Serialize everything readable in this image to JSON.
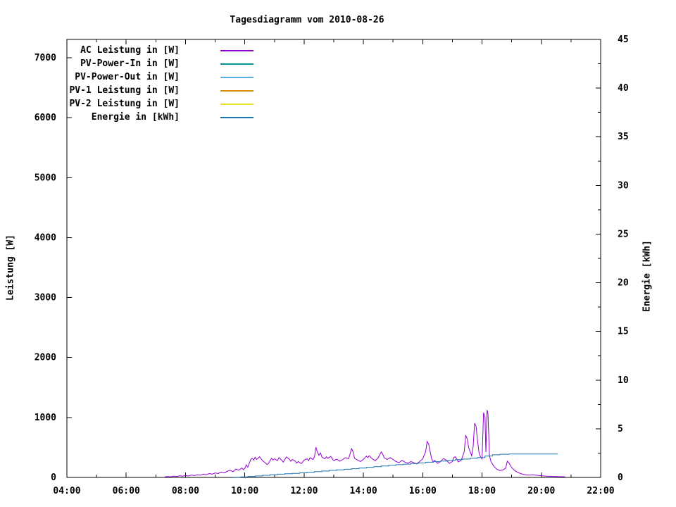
{
  "title": "Tagesdiagramm vom 2010-08-26",
  "axes": {
    "x": {
      "min": 4,
      "max": 22,
      "major_ticks": [
        4,
        6,
        8,
        10,
        12,
        14,
        16,
        18,
        20,
        22
      ],
      "major_labels": [
        "04:00",
        "06:00",
        "08:00",
        "10:00",
        "12:00",
        "14:00",
        "16:00",
        "18:00",
        "20:00",
        "22:00"
      ],
      "minor_step": 1
    },
    "y_left": {
      "label": "Leistung [W]",
      "min": 0,
      "max": 7305,
      "major_ticks": [
        0,
        1000,
        2000,
        3000,
        4000,
        5000,
        6000,
        7000
      ],
      "major_labels": [
        "0",
        "1000",
        "2000",
        "3000",
        "4000",
        "5000",
        "6000",
        "7000"
      ]
    },
    "y_right": {
      "label": "Energie [kWh]",
      "min": 0,
      "max": 45,
      "major_ticks": [
        0,
        5,
        10,
        15,
        20,
        25,
        30,
        35,
        40,
        45
      ],
      "major_labels": [
        "0",
        "5",
        "10",
        "15",
        "20",
        "25",
        "30",
        "35",
        "40",
        "45"
      ],
      "minor_step": 2.5
    }
  },
  "legend": {
    "items": [
      {
        "label": "AC Leistung in [W]",
        "color": "#9400d3"
      },
      {
        "label": "PV-Power-In in [W]",
        "color": "#009494"
      },
      {
        "label": "PV-Power-Out in [W]",
        "color": "#58b0e8"
      },
      {
        "label": "PV-1 Leistung in [W]",
        "color": "#d89000"
      },
      {
        "label": "PV-2 Leistung in [W]",
        "color": "#e8e22c"
      },
      {
        "label": "Energie in [kWh]",
        "color": "#1874b0"
      }
    ]
  },
  "chart_data": {
    "type": "line",
    "title": "Tagesdiagramm vom 2010-08-26",
    "xlabel": "",
    "x_unit": "hour of day",
    "xlim": [
      4,
      22
    ],
    "ylabel_left": "Leistung [W]",
    "ylim_left": [
      0,
      7305
    ],
    "ylabel_right": "Energie [kWh]",
    "ylim_right": [
      0,
      45
    ],
    "grid": false,
    "legend_position": "top-left-inside",
    "series": [
      {
        "name": "AC Leistung in [W]",
        "color": "#9400d3",
        "axis": "left",
        "style": "line",
        "points": [
          [
            7.3,
            8
          ],
          [
            7.4,
            15
          ],
          [
            7.5,
            10
          ],
          [
            7.6,
            22
          ],
          [
            7.7,
            15
          ],
          [
            7.8,
            28
          ],
          [
            7.9,
            20
          ],
          [
            8.0,
            30
          ],
          [
            8.1,
            25
          ],
          [
            8.2,
            40
          ],
          [
            8.3,
            30
          ],
          [
            8.4,
            45
          ],
          [
            8.5,
            38
          ],
          [
            8.6,
            55
          ],
          [
            8.7,
            45
          ],
          [
            8.8,
            65
          ],
          [
            8.9,
            55
          ],
          [
            9.0,
            75
          ],
          [
            9.1,
            65
          ],
          [
            9.2,
            90
          ],
          [
            9.3,
            75
          ],
          [
            9.4,
            100
          ],
          [
            9.5,
            120
          ],
          [
            9.6,
            95
          ],
          [
            9.7,
            140
          ],
          [
            9.8,
            120
          ],
          [
            9.9,
            160
          ],
          [
            9.95,
            130
          ],
          [
            10.0,
            150
          ],
          [
            10.05,
            210
          ],
          [
            10.1,
            170
          ],
          [
            10.2,
            300
          ],
          [
            10.25,
            320
          ],
          [
            10.3,
            290
          ],
          [
            10.35,
            335
          ],
          [
            10.4,
            300
          ],
          [
            10.5,
            345
          ],
          [
            10.55,
            310
          ],
          [
            10.6,
            280
          ],
          [
            10.7,
            240
          ],
          [
            10.75,
            215
          ],
          [
            10.8,
            235
          ],
          [
            10.85,
            280
          ],
          [
            10.9,
            320
          ],
          [
            10.95,
            290
          ],
          [
            11.0,
            310
          ],
          [
            11.1,
            280
          ],
          [
            11.15,
            330
          ],
          [
            11.2,
            310
          ],
          [
            11.3,
            255
          ],
          [
            11.35,
            300
          ],
          [
            11.4,
            340
          ],
          [
            11.5,
            305
          ],
          [
            11.55,
            270
          ],
          [
            11.6,
            300
          ],
          [
            11.7,
            270
          ],
          [
            11.75,
            240
          ],
          [
            11.8,
            265
          ],
          [
            11.9,
            230
          ],
          [
            11.95,
            255
          ],
          [
            12.0,
            290
          ],
          [
            12.1,
            310
          ],
          [
            12.15,
            280
          ],
          [
            12.2,
            330
          ],
          [
            12.3,
            300
          ],
          [
            12.35,
            340
          ],
          [
            12.4,
            505
          ],
          [
            12.45,
            420
          ],
          [
            12.5,
            370
          ],
          [
            12.55,
            410
          ],
          [
            12.6,
            340
          ],
          [
            12.7,
            310
          ],
          [
            12.75,
            345
          ],
          [
            12.8,
            320
          ],
          [
            12.9,
            350
          ],
          [
            12.95,
            310
          ],
          [
            13.0,
            280
          ],
          [
            13.1,
            305
          ],
          [
            13.2,
            270
          ],
          [
            13.3,
            300
          ],
          [
            13.4,
            330
          ],
          [
            13.5,
            310
          ],
          [
            13.6,
            480
          ],
          [
            13.65,
            430
          ],
          [
            13.7,
            320
          ],
          [
            13.8,
            290
          ],
          [
            13.9,
            265
          ],
          [
            14.0,
            300
          ],
          [
            14.1,
            355
          ],
          [
            14.15,
            330
          ],
          [
            14.2,
            360
          ],
          [
            14.3,
            310
          ],
          [
            14.4,
            280
          ],
          [
            14.5,
            330
          ],
          [
            14.6,
            425
          ],
          [
            14.65,
            390
          ],
          [
            14.7,
            330
          ],
          [
            14.8,
            300
          ],
          [
            14.9,
            330
          ],
          [
            15.0,
            300
          ],
          [
            15.1,
            265
          ],
          [
            15.2,
            245
          ],
          [
            15.3,
            285
          ],
          [
            15.4,
            255
          ],
          [
            15.5,
            235
          ],
          [
            15.6,
            265
          ],
          [
            15.7,
            245
          ],
          [
            15.8,
            225
          ],
          [
            15.9,
            265
          ],
          [
            16.0,
            310
          ],
          [
            16.1,
            430
          ],
          [
            16.15,
            600
          ],
          [
            16.2,
            555
          ],
          [
            16.25,
            430
          ],
          [
            16.3,
            310
          ],
          [
            16.35,
            255
          ],
          [
            16.4,
            285
          ],
          [
            16.5,
            235
          ],
          [
            16.6,
            265
          ],
          [
            16.7,
            315
          ],
          [
            16.8,
            285
          ],
          [
            16.9,
            235
          ],
          [
            17.0,
            265
          ],
          [
            17.05,
            335
          ],
          [
            17.1,
            345
          ],
          [
            17.2,
            260
          ],
          [
            17.3,
            290
          ],
          [
            17.4,
            430
          ],
          [
            17.45,
            705
          ],
          [
            17.5,
            645
          ],
          [
            17.55,
            495
          ],
          [
            17.6,
            430
          ],
          [
            17.65,
            360
          ],
          [
            17.7,
            510
          ],
          [
            17.75,
            905
          ],
          [
            17.8,
            850
          ],
          [
            17.85,
            610
          ],
          [
            17.9,
            410
          ],
          [
            17.95,
            340
          ],
          [
            18.0,
            310
          ],
          [
            18.05,
            1080
          ],
          [
            18.1,
            1000
          ],
          [
            18.13,
            420
          ],
          [
            18.17,
            1125
          ],
          [
            18.2,
            1060
          ],
          [
            18.25,
            360
          ],
          [
            18.3,
            265
          ],
          [
            18.4,
            185
          ],
          [
            18.5,
            135
          ],
          [
            18.6,
            115
          ],
          [
            18.7,
            125
          ],
          [
            18.8,
            155
          ],
          [
            18.85,
            270
          ],
          [
            18.9,
            245
          ],
          [
            19.0,
            165
          ],
          [
            19.1,
            115
          ],
          [
            19.2,
            85
          ],
          [
            19.3,
            65
          ],
          [
            19.4,
            50
          ],
          [
            19.5,
            42
          ],
          [
            19.6,
            38
          ],
          [
            19.7,
            45
          ],
          [
            19.8,
            40
          ],
          [
            19.9,
            32
          ],
          [
            20.0,
            28
          ],
          [
            20.1,
            24
          ],
          [
            20.2,
            20
          ],
          [
            20.3,
            18
          ],
          [
            20.5,
            14
          ],
          [
            20.8,
            10
          ]
        ]
      },
      {
        "name": "PV-Power-In in [W]",
        "color": "#009494",
        "axis": "left",
        "style": "line",
        "points": []
      },
      {
        "name": "PV-Power-Out in [W]",
        "color": "#58b0e8",
        "axis": "left",
        "style": "line",
        "points": []
      },
      {
        "name": "PV-1 Leistung in [W]",
        "color": "#d89000",
        "axis": "left",
        "style": "line",
        "points": []
      },
      {
        "name": "PV-2 Leistung in [W]",
        "color": "#e8e22c",
        "axis": "left",
        "style": "line",
        "points": []
      },
      {
        "name": "Energie in [kWh]",
        "color": "#1874b0",
        "axis": "right",
        "style": "steps",
        "points": [
          [
            9.6,
            0.02
          ],
          [
            9.85,
            0.05
          ],
          [
            10.1,
            0.1
          ],
          [
            10.35,
            0.15
          ],
          [
            10.6,
            0.22
          ],
          [
            10.85,
            0.28
          ],
          [
            11.1,
            0.33
          ],
          [
            11.35,
            0.38
          ],
          [
            11.6,
            0.42
          ],
          [
            11.85,
            0.47
          ],
          [
            12.1,
            0.53
          ],
          [
            12.35,
            0.6
          ],
          [
            12.6,
            0.66
          ],
          [
            12.85,
            0.72
          ],
          [
            13.1,
            0.78
          ],
          [
            13.35,
            0.84
          ],
          [
            13.6,
            0.9
          ],
          [
            13.85,
            0.97
          ],
          [
            14.1,
            1.04
          ],
          [
            14.35,
            1.11
          ],
          [
            14.6,
            1.18
          ],
          [
            14.85,
            1.25
          ],
          [
            15.1,
            1.31
          ],
          [
            15.35,
            1.37
          ],
          [
            15.6,
            1.43
          ],
          [
            15.85,
            1.49
          ],
          [
            16.1,
            1.56
          ],
          [
            16.35,
            1.62
          ],
          [
            16.6,
            1.68
          ],
          [
            16.85,
            1.75
          ],
          [
            17.1,
            1.82
          ],
          [
            17.35,
            1.89
          ],
          [
            17.6,
            1.97
          ],
          [
            17.85,
            2.05
          ],
          [
            18.1,
            2.2
          ],
          [
            18.35,
            2.32
          ],
          [
            18.6,
            2.38
          ],
          [
            18.9,
            2.4
          ],
          [
            20.55,
            2.41
          ]
        ]
      }
    ]
  }
}
